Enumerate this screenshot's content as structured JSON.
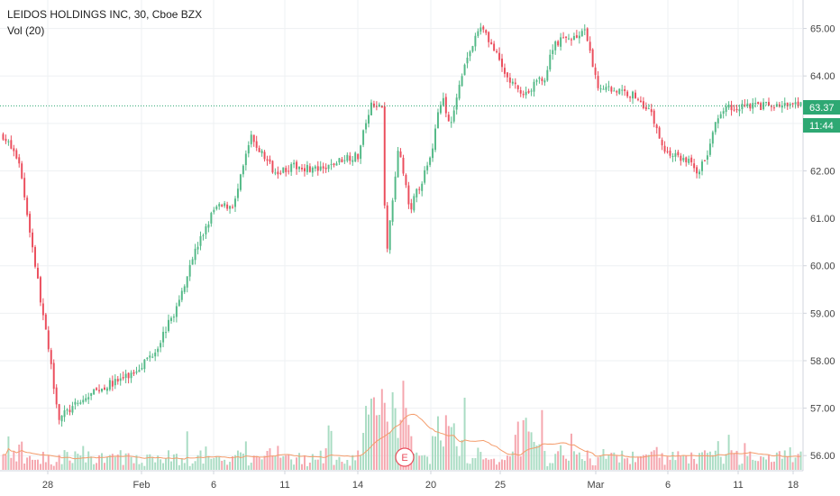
{
  "symbol": {
    "name": "LEIDOS HOLDINGS INC",
    "interval": "30",
    "exchange": "Cboe BZX"
  },
  "volume_indicator": {
    "label": "Vol (20)"
  },
  "colors": {
    "up": "#53b987",
    "down": "#eb4d5c",
    "up_volume": "#a9dcc3",
    "down_volume": "#f5a6ae",
    "volume_ma": "#f49c6b",
    "price_line": "#2ea873",
    "grid": "#eef0f3",
    "axis_border": "#d1d4dc"
  },
  "badges": {
    "last_price": "63.37",
    "countdown": "11:44",
    "earnings": "E"
  },
  "chart_data": {
    "type": "candlestick",
    "title": "",
    "xlabel": "",
    "ylabel": "",
    "ylim": [
      55.7,
      65.6
    ],
    "y_ticks": [
      "56.00",
      "57.00",
      "58.00",
      "59.00",
      "60.00",
      "61.00",
      "62.00",
      "63.00",
      "64.00",
      "65.00"
    ],
    "x_ticks": [
      "28",
      "Feb",
      "6",
      "11",
      "14",
      "20",
      "25",
      "Mar",
      "6",
      "11",
      "18"
    ],
    "last_price": 63.37,
    "series": [
      {
        "kind": "price",
        "anchors": [
          [
            "Jan 25",
            62.75,
            0.0
          ],
          [
            "Jan 25",
            62.2,
            0.02
          ],
          [
            "Jan 28",
            56.8,
            0.07
          ],
          [
            "Jan 30",
            57.4,
            0.12
          ],
          [
            "Feb 1",
            57.7,
            0.16
          ],
          [
            "Feb 1",
            58.2,
            0.19
          ],
          [
            "Feb 4",
            59.2,
            0.22
          ],
          [
            "Feb 5",
            60.1,
            0.235
          ],
          [
            "Feb 6",
            61.2,
            0.265
          ],
          [
            "Feb 7",
            61.3,
            0.29
          ],
          [
            "Feb 8",
            62.7,
            0.31
          ],
          [
            "Feb 11",
            62.0,
            0.34
          ],
          [
            "Feb 12",
            62.1,
            0.37
          ],
          [
            "Feb 13",
            62.0,
            0.4
          ],
          [
            "Feb 14",
            62.3,
            0.43
          ],
          [
            "Feb 14",
            62.3,
            0.445
          ],
          [
            "Feb 15",
            63.4,
            0.46
          ],
          [
            "Feb 15",
            63.3,
            0.475
          ],
          [
            "Feb 19",
            60.1,
            0.48
          ],
          [
            "Feb 19",
            62.5,
            0.495
          ],
          [
            "Feb 20",
            61.2,
            0.51
          ],
          [
            "Feb 21",
            62.2,
            0.535
          ],
          [
            "Feb 22",
            63.6,
            0.55
          ],
          [
            "Feb 22",
            62.9,
            0.56
          ],
          [
            "Feb 25",
            64.3,
            0.58
          ],
          [
            "Feb 26",
            65.1,
            0.6
          ],
          [
            "Feb 27",
            64.0,
            0.63
          ],
          [
            "Feb 28",
            63.6,
            0.65
          ],
          [
            "Mar 1",
            64.0,
            0.68
          ],
          [
            "Mar 4",
            64.7,
            0.69
          ],
          [
            "Mar 4",
            64.9,
            0.73
          ],
          [
            "Mar 5",
            63.8,
            0.745
          ],
          [
            "Mar 6",
            63.6,
            0.79
          ],
          [
            "Mar 7",
            63.3,
            0.81
          ],
          [
            "Mar 8",
            62.4,
            0.83
          ],
          [
            "Mar 11",
            62.2,
            0.86
          ],
          [
            "Mar 12",
            62.0,
            0.87
          ],
          [
            "Mar 13",
            62.2,
            0.88
          ],
          [
            "Mar 14",
            62.8,
            0.89
          ],
          [
            "Mar 15",
            63.3,
            0.9
          ],
          [
            "Mar 18",
            63.4,
            0.93
          ],
          [
            "Mar 18",
            63.37,
            0.95
          ]
        ]
      },
      {
        "kind": "volume",
        "values_approx_avg_height": "varies, spikes near Feb 19 and Feb 22"
      }
    ]
  }
}
